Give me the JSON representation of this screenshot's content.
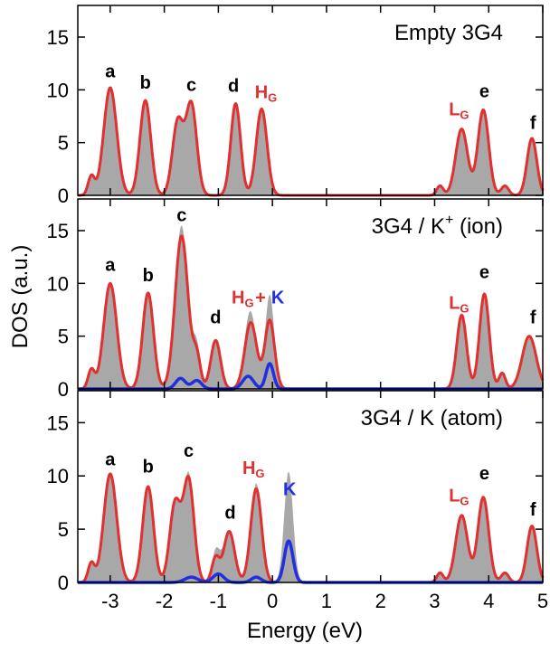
{
  "chart_data": {
    "type": "area",
    "xlabel": "Energy (eV)",
    "ylabel": "DOS (a.u.)",
    "xlim": [
      -3.6,
      5.0
    ],
    "ylim": [
      0,
      18
    ],
    "x_ticks": [
      "-3",
      "-2",
      "-1",
      "0",
      "1",
      "2",
      "3",
      "4",
      "5"
    ],
    "y_ticks": [
      "0",
      "5",
      "10",
      "15"
    ],
    "colors": {
      "total": "#a8a8a8",
      "host": "#e03030",
      "potassium": "#2030e0",
      "label_dark": "#000000"
    },
    "panels": [
      {
        "title_main": "Empty 3G4",
        "title_super": "",
        "title_tail": "",
        "labels": [
          {
            "text": "a",
            "sub": "",
            "x": -3.0,
            "y": 11.2,
            "color": "#000000"
          },
          {
            "text": "b",
            "sub": "",
            "x": -2.35,
            "y": 10.1,
            "color": "#000000"
          },
          {
            "text": "c",
            "sub": "",
            "x": -1.5,
            "y": 9.9,
            "color": "#000000"
          },
          {
            "text": "d",
            "sub": "",
            "x": -0.72,
            "y": 9.8,
            "color": "#000000"
          },
          {
            "text": "H",
            "sub": "G",
            "x": -0.12,
            "y": 9.2,
            "color": "#e03030"
          },
          {
            "text": "L",
            "sub": "G",
            "x": 3.45,
            "y": 7.6,
            "color": "#e03030"
          },
          {
            "text": "e",
            "sub": "",
            "x": 3.92,
            "y": 9.3,
            "color": "#000000"
          },
          {
            "text": "f",
            "sub": "",
            "x": 4.82,
            "y": 6.3,
            "color": "#000000"
          }
        ],
        "peaks": [
          {
            "x": -3.35,
            "h": 1.8,
            "w": 0.06
          },
          {
            "x": -3.0,
            "h": 10.2,
            "w": 0.12
          },
          {
            "x": -2.35,
            "h": 9.0,
            "w": 0.1
          },
          {
            "x": -1.75,
            "h": 7.0,
            "w": 0.1
          },
          {
            "x": -1.5,
            "h": 8.6,
            "w": 0.1
          },
          {
            "x": -0.68,
            "h": 8.7,
            "w": 0.09
          },
          {
            "x": -0.2,
            "h": 8.2,
            "w": 0.1
          },
          {
            "x": 3.1,
            "h": 0.9,
            "w": 0.06
          },
          {
            "x": 3.5,
            "h": 6.3,
            "w": 0.11
          },
          {
            "x": 3.9,
            "h": 8.1,
            "w": 0.1
          },
          {
            "x": 4.3,
            "h": 0.9,
            "w": 0.07
          },
          {
            "x": 4.8,
            "h": 5.4,
            "w": 0.09
          }
        ],
        "k_peaks": []
      },
      {
        "title_main": "3G4 / K",
        "title_super": "+",
        "title_tail": " (ion)",
        "labels": [
          {
            "text": "a",
            "sub": "",
            "x": -3.0,
            "y": 11.2,
            "color": "#000000"
          },
          {
            "text": "b",
            "sub": "",
            "x": -2.3,
            "y": 10.2,
            "color": "#000000"
          },
          {
            "text": "c",
            "sub": "",
            "x": -1.68,
            "y": 15.9,
            "color": "#000000"
          },
          {
            "text": "d",
            "sub": "",
            "x": -1.05,
            "y": 6.2,
            "color": "#000000"
          },
          {
            "text": "H",
            "sub": "G",
            "x": -0.55,
            "y": 8.1,
            "color": "#e03030"
          },
          {
            "text": "+",
            "sub": "",
            "x": -0.22,
            "y": 8.1,
            "color": "#e03030"
          },
          {
            "text": "K",
            "sub": "",
            "x": 0.1,
            "y": 8.1,
            "color": "#2030e0"
          },
          {
            "text": "L",
            "sub": "G",
            "x": 3.45,
            "y": 7.6,
            "color": "#e03030"
          },
          {
            "text": "e",
            "sub": "",
            "x": 3.92,
            "y": 10.5,
            "color": "#000000"
          },
          {
            "text": "f",
            "sub": "",
            "x": 4.82,
            "y": 6.2,
            "color": "#000000"
          }
        ],
        "peaks": [
          {
            "x": -3.35,
            "h": 1.8,
            "w": 0.06
          },
          {
            "x": -3.0,
            "h": 10.0,
            "w": 0.12
          },
          {
            "x": -2.3,
            "h": 9.1,
            "w": 0.1
          },
          {
            "x": -1.68,
            "h": 14.5,
            "w": 0.12
          },
          {
            "x": -1.4,
            "h": 3.0,
            "w": 0.07
          },
          {
            "x": -1.05,
            "h": 4.6,
            "w": 0.09
          },
          {
            "x": -0.4,
            "h": 6.3,
            "w": 0.11
          },
          {
            "x": -0.05,
            "h": 6.5,
            "w": 0.09
          },
          {
            "x": 3.5,
            "h": 7.0,
            "w": 0.09
          },
          {
            "x": 3.92,
            "h": 9.0,
            "w": 0.09
          },
          {
            "x": 4.25,
            "h": 1.5,
            "w": 0.06
          },
          {
            "x": 4.75,
            "h": 5.0,
            "w": 0.13
          }
        ],
        "k_peaks": [
          {
            "x": -1.7,
            "h": 1.0,
            "w": 0.09
          },
          {
            "x": -1.4,
            "h": 0.8,
            "w": 0.09
          },
          {
            "x": -0.45,
            "h": 1.2,
            "w": 0.1
          },
          {
            "x": -0.05,
            "h": 2.4,
            "w": 0.07
          }
        ]
      },
      {
        "title_main": "3G4 / K  (atom)",
        "title_super": "",
        "title_tail": "",
        "labels": [
          {
            "text": "a",
            "sub": "",
            "x": -3.0,
            "y": 11.0,
            "color": "#000000"
          },
          {
            "text": "b",
            "sub": "",
            "x": -2.3,
            "y": 10.3,
            "color": "#000000"
          },
          {
            "text": "c",
            "sub": "",
            "x": -1.55,
            "y": 11.8,
            "color": "#000000"
          },
          {
            "text": "d",
            "sub": "",
            "x": -0.78,
            "y": 6.0,
            "color": "#000000"
          },
          {
            "text": "H",
            "sub": "G",
            "x": -0.35,
            "y": 10.2,
            "color": "#e03030"
          },
          {
            "text": "K",
            "sub": "",
            "x": 0.32,
            "y": 8.2,
            "color": "#2030e0"
          },
          {
            "text": "L",
            "sub": "G",
            "x": 3.45,
            "y": 7.6,
            "color": "#e03030"
          },
          {
            "text": "e",
            "sub": "",
            "x": 3.92,
            "y": 9.7,
            "color": "#000000"
          },
          {
            "text": "f",
            "sub": "",
            "x": 4.82,
            "y": 6.3,
            "color": "#000000"
          }
        ],
        "peaks": [
          {
            "x": -3.35,
            "h": 1.8,
            "w": 0.06
          },
          {
            "x": -3.0,
            "h": 10.2,
            "w": 0.12
          },
          {
            "x": -2.3,
            "h": 9.0,
            "w": 0.1
          },
          {
            "x": -1.8,
            "h": 7.4,
            "w": 0.1
          },
          {
            "x": -1.55,
            "h": 9.6,
            "w": 0.1
          },
          {
            "x": -1.05,
            "h": 2.3,
            "w": 0.07
          },
          {
            "x": -0.8,
            "h": 4.8,
            "w": 0.1
          },
          {
            "x": -0.3,
            "h": 8.8,
            "w": 0.1
          },
          {
            "x": 0.3,
            "h": 3.9,
            "w": 0.08
          },
          {
            "x": 3.1,
            "h": 0.9,
            "w": 0.06
          },
          {
            "x": 3.5,
            "h": 6.3,
            "w": 0.11
          },
          {
            "x": 3.9,
            "h": 8.0,
            "w": 0.1
          },
          {
            "x": 4.3,
            "h": 0.9,
            "w": 0.07
          },
          {
            "x": 4.8,
            "h": 5.3,
            "w": 0.09
          }
        ],
        "k_peaks": [
          {
            "x": -1.5,
            "h": 0.5,
            "w": 0.12
          },
          {
            "x": -1.0,
            "h": 0.8,
            "w": 0.1
          },
          {
            "x": -0.3,
            "h": 0.5,
            "w": 0.09
          },
          {
            "x": 0.3,
            "h": 3.9,
            "w": 0.08
          }
        ],
        "gray_extra": [
          {
            "x": 0.3,
            "h": 2.6,
            "w": 0.09
          }
        ]
      }
    ]
  }
}
